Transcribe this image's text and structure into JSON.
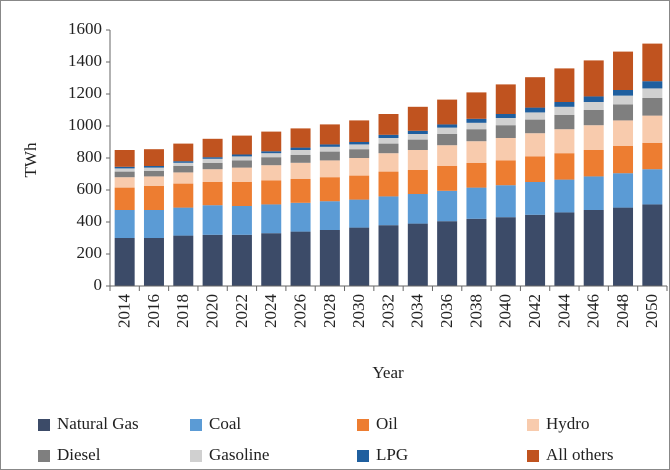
{
  "chart_data": {
    "type": "stacked_bar",
    "x_label": "Year",
    "y_label": "TWh",
    "categories": [
      "2014",
      "2016",
      "2018",
      "2020",
      "2022",
      "2024",
      "2026",
      "2028",
      "2030",
      "2032",
      "2034",
      "2036",
      "2038",
      "2040",
      "2042",
      "2044",
      "2046",
      "2048",
      "2050"
    ],
    "series": [
      {
        "name": "Natural Gas",
        "color": "#3c4b68",
        "values": [
          300,
          300,
          315,
          320,
          320,
          330,
          340,
          350,
          365,
          380,
          390,
          405,
          420,
          430,
          445,
          460,
          475,
          490,
          510
        ]
      },
      {
        "name": "Coal",
        "color": "#5b9bd5",
        "values": [
          175,
          175,
          175,
          185,
          180,
          180,
          180,
          180,
          175,
          180,
          185,
          190,
          195,
          200,
          205,
          205,
          210,
          215,
          220
        ]
      },
      {
        "name": "Oil",
        "color": "#ed7d31",
        "values": [
          140,
          150,
          150,
          145,
          150,
          150,
          150,
          150,
          150,
          155,
          150,
          155,
          155,
          155,
          160,
          165,
          165,
          170,
          165
        ]
      },
      {
        "name": "Hydro",
        "color": "#f8cbad",
        "values": [
          65,
          60,
          70,
          80,
          90,
          95,
          100,
          105,
          110,
          115,
          125,
          130,
          135,
          140,
          145,
          150,
          155,
          160,
          170
        ]
      },
      {
        "name": "Diesel",
        "color": "#7f7f7f",
        "values": [
          35,
          35,
          40,
          40,
          45,
          50,
          50,
          55,
          55,
          60,
          65,
          70,
          75,
          80,
          85,
          90,
          95,
          100,
          110
        ]
      },
      {
        "name": "Gasoline",
        "color": "#d0d0d0",
        "values": [
          20,
          20,
          20,
          25,
          25,
          25,
          30,
          30,
          30,
          35,
          35,
          40,
          40,
          45,
          45,
          50,
          50,
          55,
          60
        ]
      },
      {
        "name": "LPG",
        "color": "#1f5f9f",
        "values": [
          10,
          10,
          10,
          10,
          12,
          12,
          15,
          15,
          15,
          20,
          20,
          20,
          25,
          25,
          30,
          30,
          35,
          35,
          45
        ]
      },
      {
        "name": "All others",
        "color": "#c0531f",
        "values": [
          105,
          105,
          110,
          115,
          118,
          123,
          120,
          125,
          135,
          130,
          150,
          155,
          165,
          185,
          190,
          210,
          225,
          240,
          235
        ]
      }
    ],
    "ylim": [
      0,
      1600
    ],
    "yticks": [
      0,
      200,
      400,
      600,
      800,
      1000,
      1200,
      1400,
      1600
    ]
  }
}
